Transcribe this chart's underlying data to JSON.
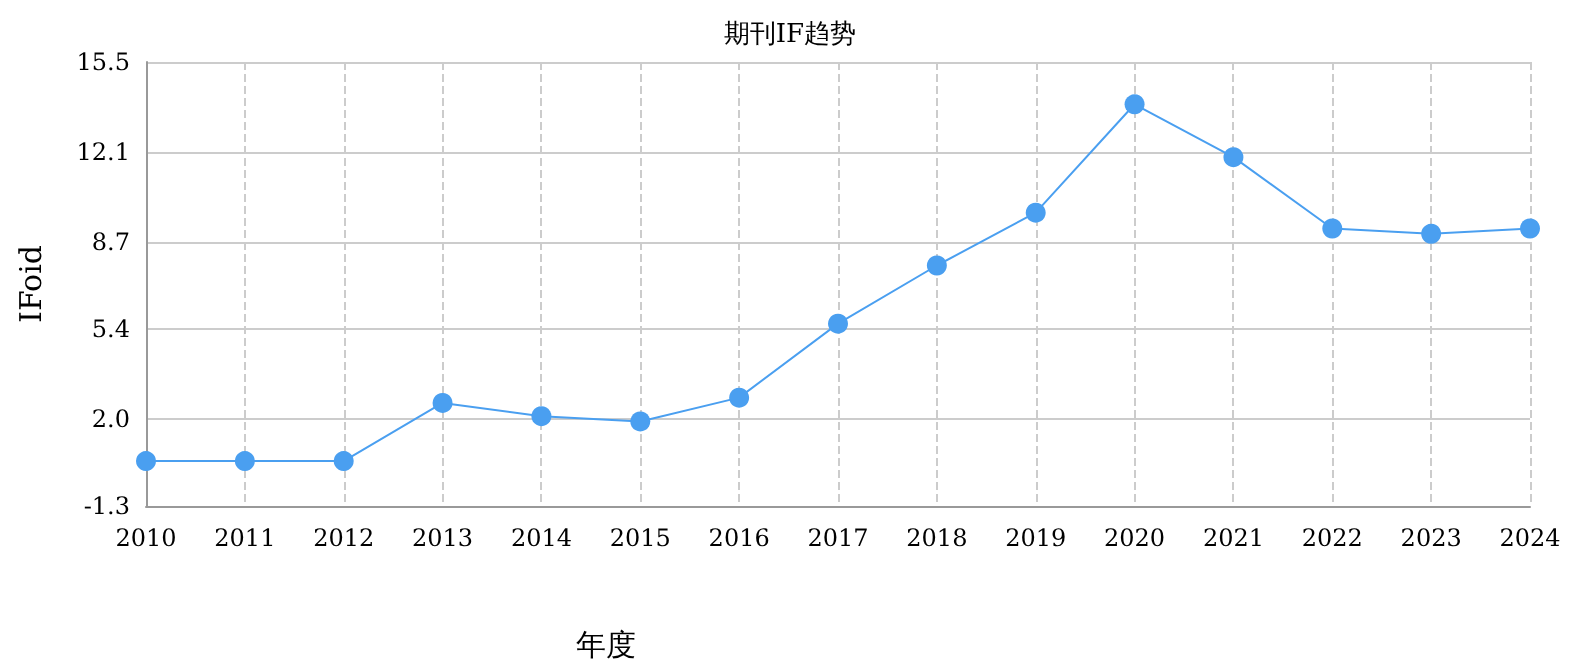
{
  "chart_data": {
    "type": "line",
    "title": "期刊IF趋势",
    "xlabel": "年度",
    "ylabel": "IFoid",
    "categories": [
      "2010",
      "2011",
      "2012",
      "2013",
      "2014",
      "2015",
      "2016",
      "2017",
      "2018",
      "2019",
      "2020",
      "2021",
      "2022",
      "2023",
      "2024"
    ],
    "series": [
      {
        "color": "#4a9ff0",
        "values": [
          0.4,
          0.4,
          0.4,
          2.6,
          2.1,
          1.9,
          2.8,
          5.6,
          7.8,
          9.8,
          13.9,
          11.9,
          9.2,
          9.0,
          9.2
        ]
      }
    ],
    "ylim": [
      -1.3,
      15.5
    ],
    "yticks": [
      -1.3,
      {
        "value": 2,
        "label": "2.0"
      },
      5.4,
      8.7,
      12.1,
      15.5
    ],
    "grid": true,
    "marker": "circle",
    "line_style": "solid"
  }
}
